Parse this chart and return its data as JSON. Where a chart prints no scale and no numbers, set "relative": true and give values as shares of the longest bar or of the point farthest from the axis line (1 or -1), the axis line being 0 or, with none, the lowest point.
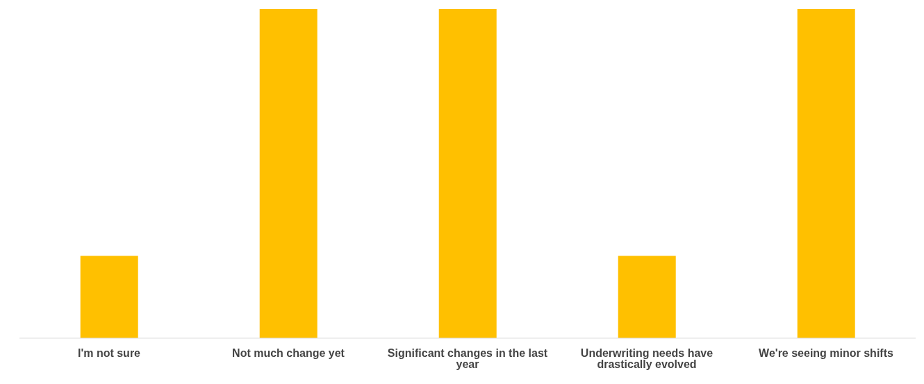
{
  "chart_data": {
    "type": "bar",
    "relative": true,
    "categories": [
      "I'm not sure",
      "Not much change yet",
      "Significant changes in the last year",
      "Underwriting needs have drastically evolved",
      "We're seeing minor shifts"
    ],
    "values": [
      0.25,
      1,
      1,
      0.25,
      1
    ],
    "color": "#ffc000",
    "grid": false
  }
}
